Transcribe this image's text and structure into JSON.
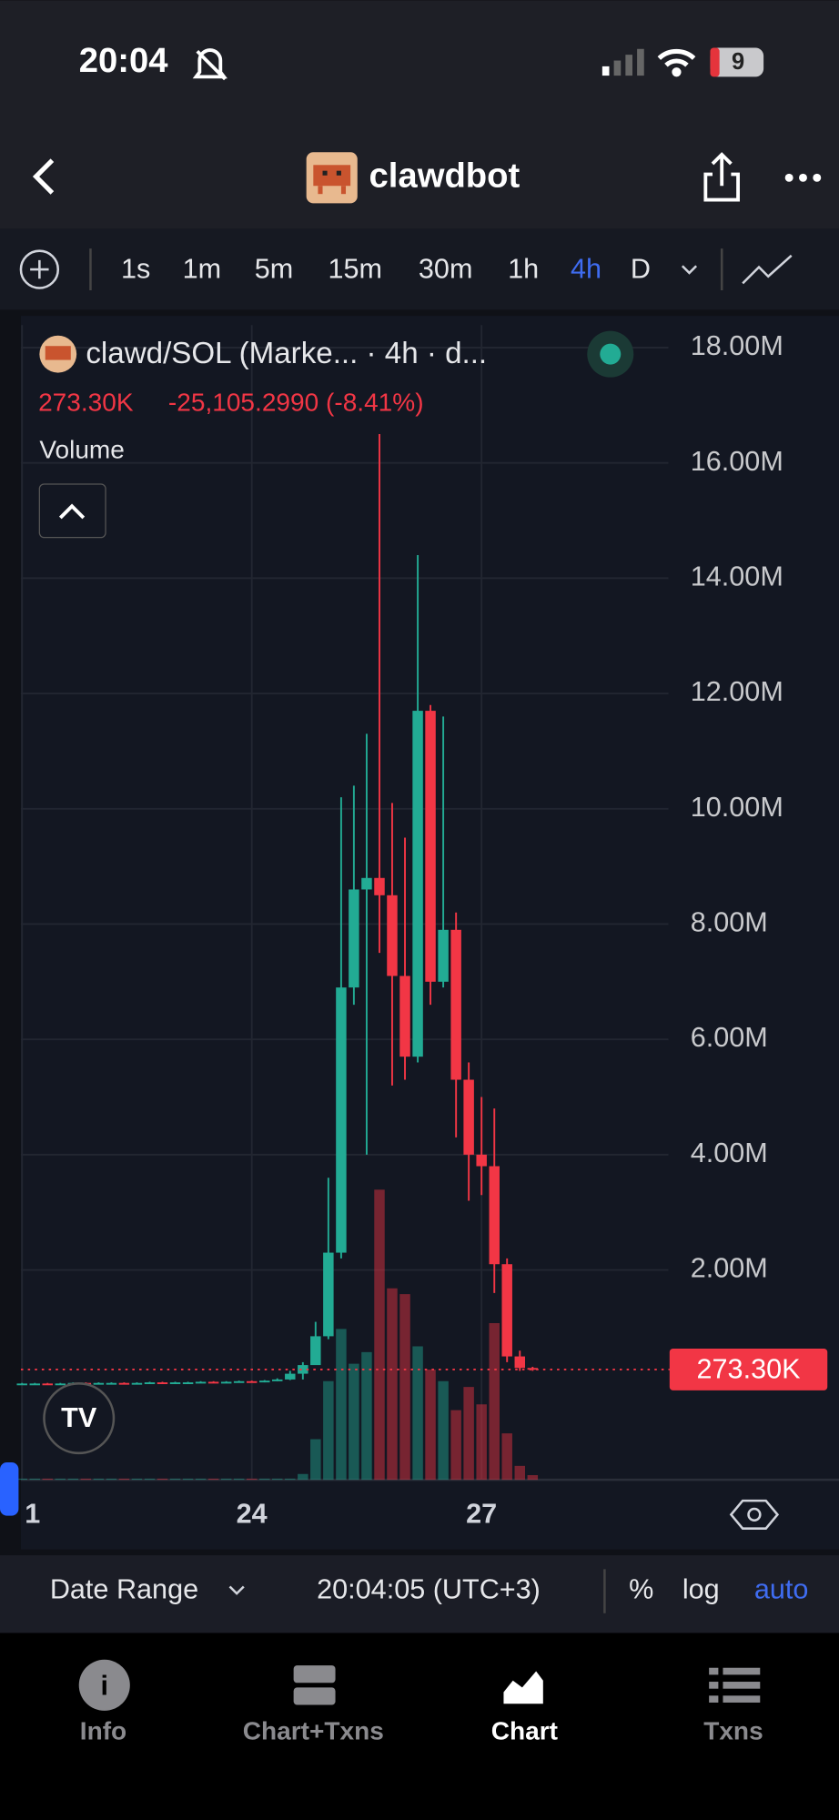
{
  "status_bar": {
    "time": "20:04",
    "battery": "9"
  },
  "header": {
    "title": "clawdbot"
  },
  "toolbar": {
    "intervals": [
      "1s",
      "1m",
      "5m",
      "15m",
      "30m",
      "1h",
      "4h",
      "D"
    ],
    "active_index": 6
  },
  "chart": {
    "type": "candlestick",
    "title": "clawd/SOL (Marke... · 4h · d...",
    "legend_values": "273.30K",
    "legend_change": "-25,105.2990 (-8.41%)",
    "indicator": "Volume",
    "up_color": "#22ab94",
    "down_color": "#f23645",
    "x": [
      21,
      21.167,
      21.333,
      21.5,
      21.667,
      21.833,
      22,
      22.167,
      22.333,
      22.5,
      22.667,
      22.833,
      23,
      23.167,
      23.333,
      23.5,
      23.667,
      23.833,
      24,
      24.167,
      24.333,
      24.5,
      24.667,
      24.833,
      25,
      25.167,
      25.333,
      25.5,
      25.667,
      25.833,
      26,
      26.167,
      26.333,
      26.5,
      26.667,
      26.833,
      27,
      27.167,
      27.333,
      27.5,
      27.667
    ],
    "open": [
      0.02,
      0.03,
      0.03,
      0.02,
      0.03,
      0.04,
      0.03,
      0.04,
      0.04,
      0.03,
      0.04,
      0.05,
      0.04,
      0.05,
      0.05,
      0.06,
      0.05,
      0.06,
      0.07,
      0.06,
      0.08,
      0.1,
      0.2,
      0.35,
      0.85,
      2.3,
      6.9,
      8.6,
      8.8,
      8.5,
      7.1,
      5.7,
      11.7,
      7.0,
      7.9,
      5.3,
      4.0,
      3.8,
      2.1,
      0.5,
      0.3
    ],
    "high": [
      0.04,
      0.04,
      0.04,
      0.04,
      0.05,
      0.05,
      0.05,
      0.05,
      0.05,
      0.05,
      0.06,
      0.06,
      0.06,
      0.06,
      0.07,
      0.07,
      0.07,
      0.08,
      0.08,
      0.09,
      0.12,
      0.25,
      0.4,
      1.1,
      3.6,
      10.2,
      10.4,
      11.3,
      16.5,
      10.1,
      9.5,
      14.4,
      11.8,
      11.6,
      8.2,
      5.6,
      5.0,
      4.8,
      2.2,
      0.6,
      0.32
    ],
    "low": [
      0.01,
      0.02,
      0.01,
      0.01,
      0.02,
      0.02,
      0.02,
      0.03,
      0.02,
      0.02,
      0.03,
      0.03,
      0.03,
      0.04,
      0.04,
      0.04,
      0.04,
      0.05,
      0.05,
      0.05,
      0.07,
      0.09,
      0.1,
      0.4,
      0.8,
      2.2,
      6.6,
      4.0,
      7.5,
      5.2,
      5.3,
      5.6,
      6.6,
      6.9,
      4.3,
      3.2,
      3.3,
      1.6,
      0.4,
      0.25,
      0.25
    ],
    "close": [
      0.03,
      0.03,
      0.02,
      0.03,
      0.04,
      0.03,
      0.04,
      0.04,
      0.03,
      0.04,
      0.05,
      0.04,
      0.05,
      0.05,
      0.06,
      0.05,
      0.06,
      0.07,
      0.06,
      0.08,
      0.1,
      0.2,
      0.35,
      0.85,
      2.3,
      6.9,
      8.6,
      8.8,
      8.5,
      7.1,
      5.7,
      11.7,
      7.0,
      7.9,
      5.3,
      4.0,
      3.8,
      2.1,
      0.5,
      0.3,
      0.27
    ],
    "volume": [
      1,
      1,
      1,
      1,
      1,
      1,
      1,
      1,
      1,
      1,
      1,
      1,
      1,
      1,
      1,
      1,
      1,
      1,
      1,
      1,
      1,
      1,
      5,
      35,
      85,
      130,
      100,
      110,
      250,
      165,
      160,
      115,
      95,
      85,
      60,
      80,
      65,
      135,
      40,
      12,
      4
    ],
    "xlim": [
      20.985,
      29.44
    ],
    "ylim": [
      -1.64,
      18.39
    ],
    "xticks": [
      {
        "value": 21,
        "label": "1"
      },
      24,
      27
    ],
    "yticks": [
      {
        "value": 2,
        "label": "2.00M"
      },
      {
        "value": 4,
        "label": "4.00M"
      },
      {
        "value": 6,
        "label": "6.00M"
      },
      {
        "value": 8,
        "label": "8.00M"
      },
      {
        "value": 10,
        "label": "10.00M"
      },
      {
        "value": 12,
        "label": "12.00M"
      },
      {
        "value": 14,
        "label": "14.00M"
      },
      {
        "value": 16,
        "label": "16.00M"
      },
      {
        "value": 18,
        "label": "18.00M"
      }
    ],
    "last_price": {
      "value": 0.2733,
      "label": "273.30K"
    },
    "grid": true
  },
  "bottom_bar": {
    "date_range": "Date Range",
    "clock": "20:04:05 (UTC+3)",
    "percent": "%",
    "log": "log",
    "auto": "auto"
  },
  "tabs": [
    "Info",
    "Chart+Txns",
    "Chart",
    "Txns"
  ]
}
